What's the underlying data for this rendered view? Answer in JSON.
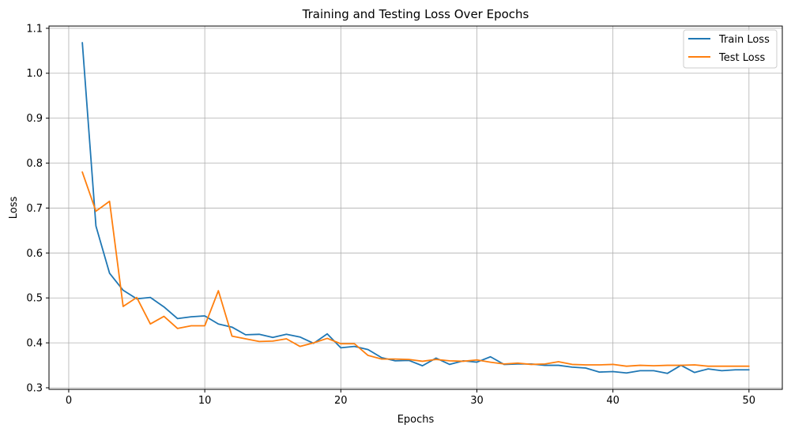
{
  "chart_data": {
    "type": "line",
    "title": "Training and Testing Loss Over Epochs",
    "xlabel": "Epochs",
    "ylabel": "Loss",
    "xlim": [
      -1.45,
      52.45
    ],
    "ylim": [
      0.2965,
      1.105
    ],
    "xticks": [
      0,
      10,
      20,
      30,
      40,
      50
    ],
    "xtick_labels": [
      "0",
      "10",
      "20",
      "30",
      "40",
      "50"
    ],
    "yticks": [
      0.3,
      0.4,
      0.5,
      0.6,
      0.7,
      0.8,
      0.9,
      1.0,
      1.1
    ],
    "ytick_labels": [
      "0.3",
      "0.4",
      "0.5",
      "0.6",
      "0.7",
      "0.8",
      "0.9",
      "1.0",
      "1.1"
    ],
    "grid": true,
    "legend_position": "top-right",
    "x": [
      1,
      2,
      3,
      4,
      5,
      6,
      7,
      8,
      9,
      10,
      11,
      12,
      13,
      14,
      15,
      16,
      17,
      18,
      19,
      20,
      21,
      22,
      23,
      24,
      25,
      26,
      27,
      28,
      29,
      30,
      31,
      32,
      33,
      34,
      35,
      36,
      37,
      38,
      39,
      40,
      41,
      42,
      43,
      44,
      45,
      46,
      47,
      48,
      49,
      50
    ],
    "series": [
      {
        "name": "Train Loss",
        "color": "#1f77b4",
        "values": [
          1.068,
          0.66,
          0.555,
          0.517,
          0.498,
          0.501,
          0.48,
          0.454,
          0.458,
          0.46,
          0.442,
          0.435,
          0.418,
          0.419,
          0.412,
          0.419,
          0.413,
          0.399,
          0.42,
          0.389,
          0.392,
          0.385,
          0.367,
          0.36,
          0.361,
          0.349,
          0.366,
          0.352,
          0.36,
          0.357,
          0.369,
          0.352,
          0.353,
          0.353,
          0.35,
          0.35,
          0.346,
          0.344,
          0.335,
          0.336,
          0.333,
          0.338,
          0.338,
          0.332,
          0.35,
          0.334,
          0.342,
          0.338,
          0.34,
          0.34
        ]
      },
      {
        "name": "Test Loss",
        "color": "#ff7f0e",
        "values": [
          0.78,
          0.693,
          0.715,
          0.481,
          0.501,
          0.442,
          0.459,
          0.432,
          0.438,
          0.438,
          0.516,
          0.415,
          0.409,
          0.403,
          0.404,
          0.409,
          0.392,
          0.4,
          0.41,
          0.398,
          0.398,
          0.372,
          0.364,
          0.364,
          0.363,
          0.359,
          0.363,
          0.36,
          0.359,
          0.362,
          0.357,
          0.353,
          0.355,
          0.352,
          0.353,
          0.358,
          0.352,
          0.351,
          0.351,
          0.352,
          0.348,
          0.35,
          0.349,
          0.35,
          0.35,
          0.351,
          0.348,
          0.348,
          0.348,
          0.348
        ]
      }
    ]
  }
}
